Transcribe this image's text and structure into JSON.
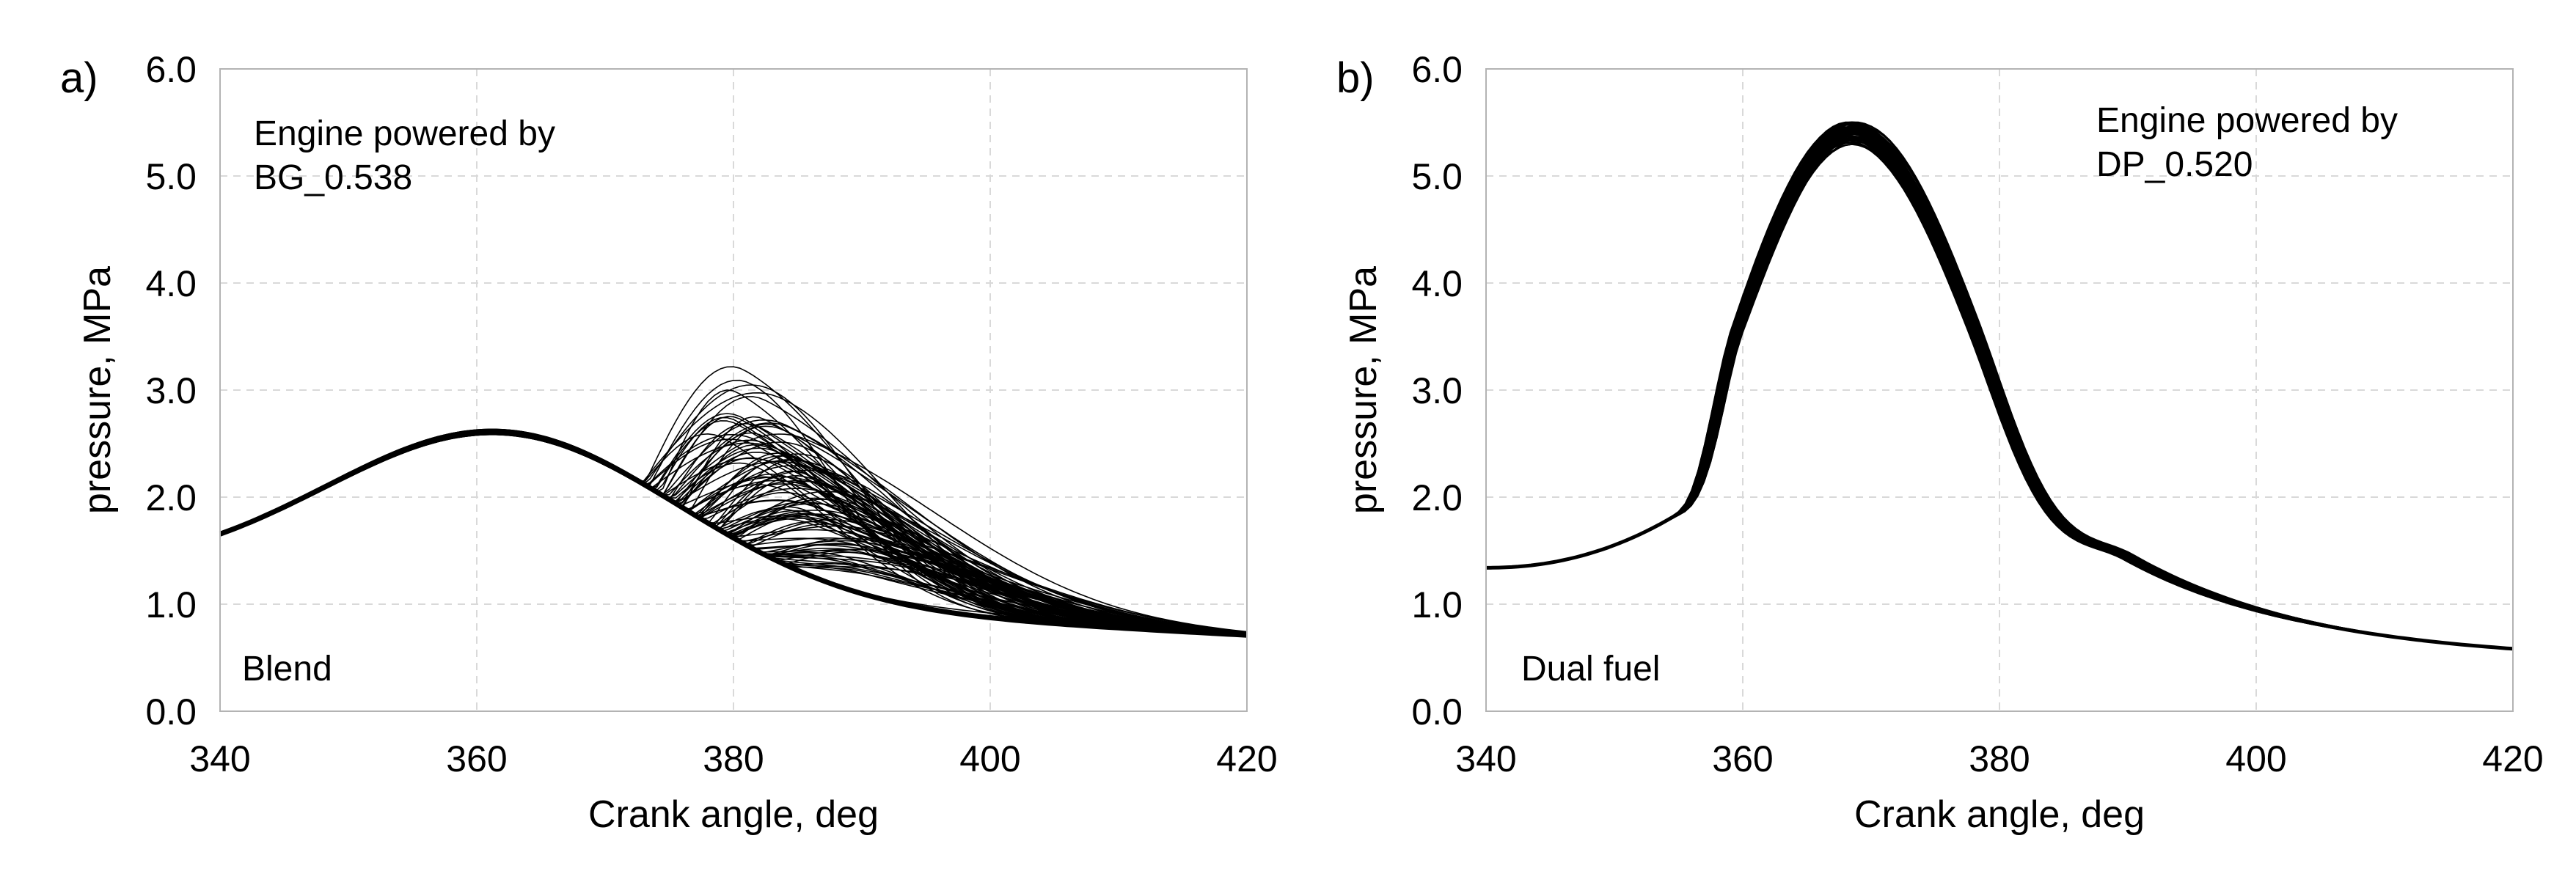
{
  "chart_data": [
    {
      "type": "line",
      "panel_label": "a)",
      "title": "",
      "xlabel": "Crank angle, deg",
      "ylabel": "pressure, MPa",
      "xlim": [
        340,
        420
      ],
      "ylim": [
        0,
        6
      ],
      "xticks": [
        "340",
        "360",
        "380",
        "400",
        "420"
      ],
      "yticks": [
        "0.0",
        "1.0",
        "2.0",
        "3.0",
        "4.0",
        "5.0",
        "6.0"
      ],
      "grid": true,
      "annotation": [
        "Engine powered by",
        "BG_0.538"
      ],
      "corner_label": "Blend",
      "line_color": "#000000",
      "cycles": 100,
      "envelope": {
        "motoring_peak": {
          "x": 362,
          "y": 2.75
        },
        "start_value": {
          "x": 340,
          "y": 1.23
        },
        "end_value": {
          "x": 420,
          "y": 0.72
        },
        "combustion_peak_range": {
          "x": [
            379,
            405
          ],
          "y": [
            0.95,
            3.45
          ]
        }
      }
    },
    {
      "type": "line",
      "panel_label": "b)",
      "title": "",
      "xlabel": "Crank angle, deg",
      "ylabel": "pressure, MPa",
      "xlim": [
        340,
        420
      ],
      "ylim": [
        0,
        6
      ],
      "xticks": [
        "340",
        "360",
        "380",
        "400",
        "420"
      ],
      "yticks": [
        "0.0",
        "1.0",
        "2.0",
        "3.0",
        "4.0",
        "5.0",
        "6.0"
      ],
      "grid": true,
      "annotation": [
        "Engine powered by",
        "DP_0.520"
      ],
      "corner_label": "Dual fuel",
      "line_color": "#000000",
      "cycles": 100,
      "envelope": {
        "peak": {
          "x": 368.5,
          "y": 5.4
        },
        "start_value": {
          "x": 340,
          "y": 1.34
        },
        "end_value": {
          "x": 420,
          "y": 0.46
        },
        "ignition_kink": {
          "x": 357,
          "y": 3.1
        }
      }
    }
  ]
}
